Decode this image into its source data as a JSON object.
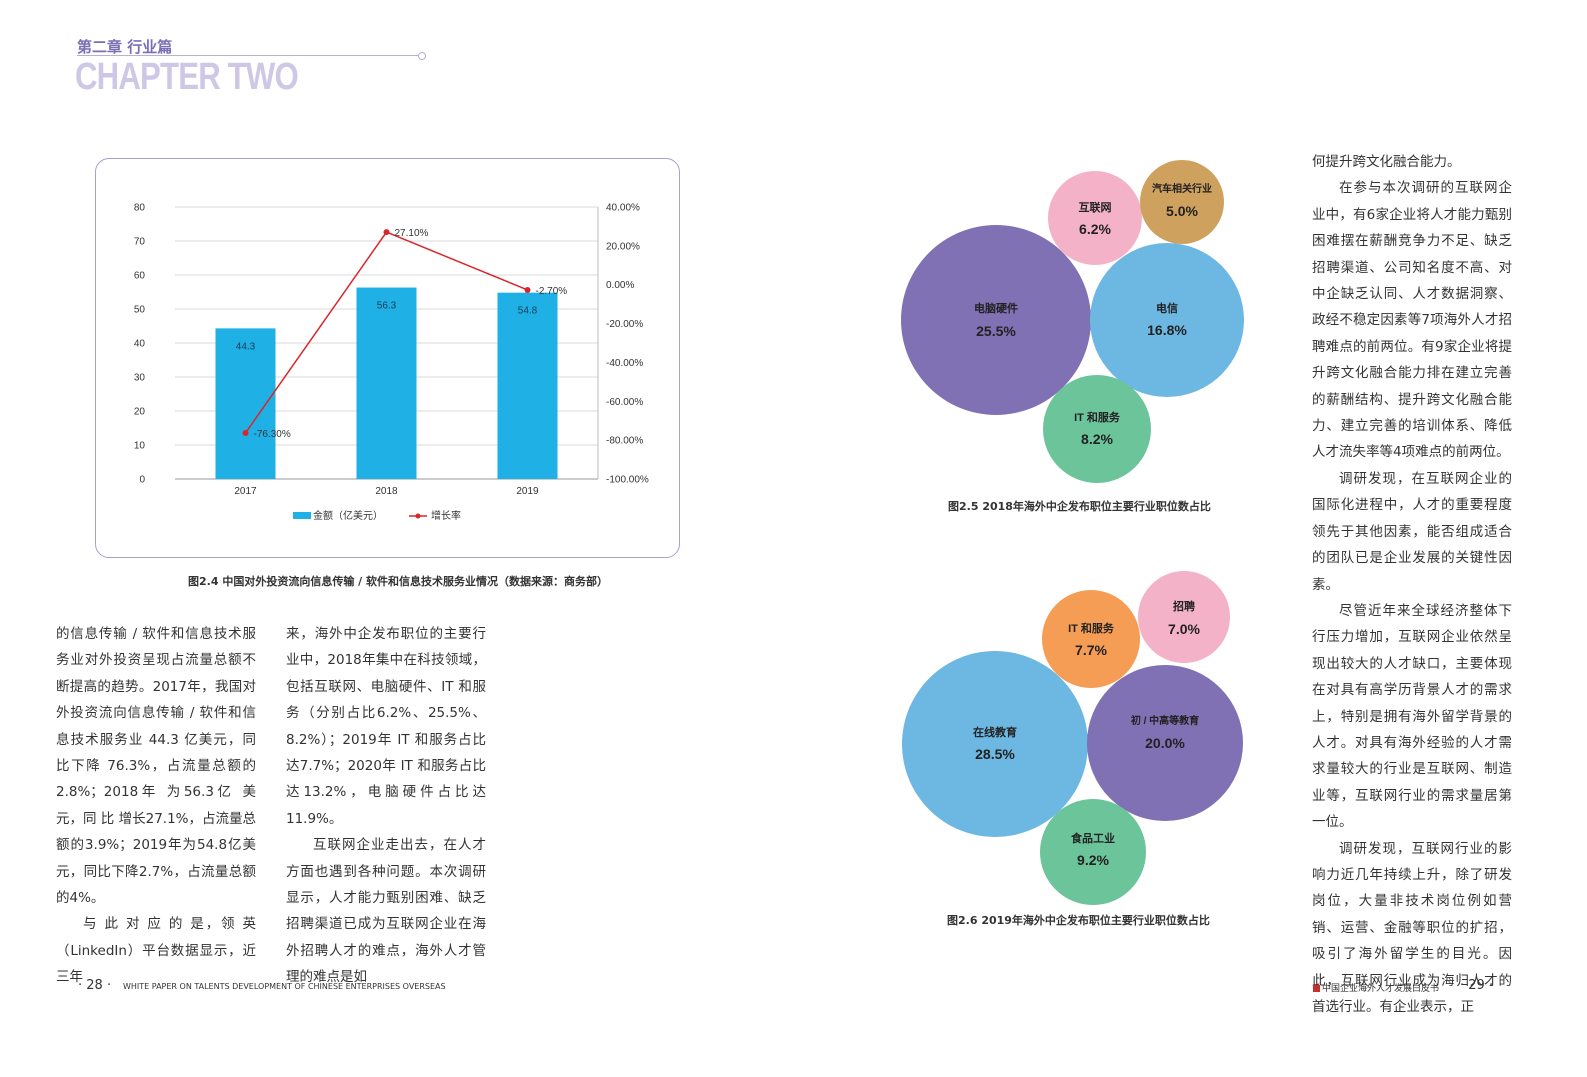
{
  "header": {
    "chapter_cn": "第二章 行业篇",
    "chapter_en": "CHAPTER TWO"
  },
  "figure_2_4": {
    "caption": "图2.4  中国对外投资流向信息传输 / 软件和信息技术服务业情况（数据来源：商务部）",
    "chart_data": {
      "type": "bar",
      "categories": [
        "2017",
        "2018",
        "2019"
      ],
      "series": [
        {
          "name": "金额（亿美元）",
          "type": "bar",
          "axis": "left",
          "values": [
            44.3,
            56.3,
            54.8
          ],
          "labels": [
            "44.3",
            "56.3",
            "54.8"
          ],
          "color": "#1fb0e6"
        },
        {
          "name": "增长率",
          "type": "line",
          "axis": "right",
          "values": [
            -76.3,
            27.1,
            -2.7
          ],
          "labels": [
            "-76.30%",
            "27.10%",
            "-2.70%"
          ],
          "color": "#d9262b"
        }
      ],
      "left_ticks": [
        "80",
        "70",
        "60",
        "50",
        "40",
        "30",
        "20",
        "10",
        "0"
      ],
      "right_ticks": [
        "40.00%",
        "20.00%",
        "0.00%",
        "-20.00%",
        "-40.00%",
        "-60.00%",
        "-80.00%",
        "-100.00%"
      ],
      "ylim_left": [
        0,
        80
      ],
      "ylim_right": [
        -100,
        40
      ],
      "grid": true,
      "legend": "bottom"
    }
  },
  "figure_2_5": {
    "caption": "图2.5  2018年海外中企发布职位主要行业职位数占比",
    "bubbles": [
      {
        "label": "电脑硬件",
        "value": "25.5%",
        "color": "#8070b4"
      },
      {
        "label": "电信",
        "value": "16.8%",
        "color": "#6cb8e2"
      },
      {
        "label": "IT 和服务",
        "value": "8.2%",
        "color": "#6cc49b"
      },
      {
        "label": "互联网",
        "value": "6.2%",
        "color": "#f4b2c9"
      },
      {
        "label": "汽车相关行业",
        "value": "5.0%",
        "color": "#cfa15f"
      }
    ]
  },
  "figure_2_6": {
    "caption": "图2.6  2019年海外中企发布职位主要行业职位数占比",
    "bubbles": [
      {
        "label": "在线教育",
        "value": "28.5%",
        "color": "#6cb8e2"
      },
      {
        "label": "初 / 中高等教育",
        "value": "20.0%",
        "color": "#8070b4"
      },
      {
        "label": "食品工业",
        "value": "9.2%",
        "color": "#6cc49b"
      },
      {
        "label": "IT 和服务",
        "value": "7.7%",
        "color": "#f59d54"
      },
      {
        "label": "招聘",
        "value": "7.0%",
        "color": "#f4b2c9"
      }
    ]
  },
  "columns": {
    "col1": [
      "的信息传输 / 软件和信息技术服务业对外投资呈现占流量总额不断提高的趋势。2017年，我国对外投资流向信息传输 / 软件和信息技术服务业 44.3 亿美元，同比下降 76.3%，占流量总额的 2.8%；2018年 为56.3亿 美 元，同 比 增长27.1%，占流量总额的3.9%；2019年为54.8亿美元，同比下降2.7%，占流量总额的4%。",
      "与 此 对 应 的 是，领 英（LinkedIn）平台数据显示，近三年"
    ],
    "col2": [
      "来，海外中企发布职位的主要行业中，2018年集中在科技领域，包括互联网、电脑硬件、IT 和服务（分别占比6.2%、25.5%、8.2%）；2019年 IT 和服务占比达7.7%；2020年 IT 和服务占比达13.2%，电脑硬件占比达11.9%。",
      "互联网企业走出去，在人才方面也遇到各种问题。本次调研显示，人才能力甄别困难、缺乏招聘渠道已成为互联网企业在海外招聘人才的难点，海外人才管理的难点是如"
    ],
    "col3": [
      "何提升跨文化融合能力。",
      "在参与本次调研的互联网企业中，有6家企业将人才能力甄别困难摆在薪酬竞争力不足、缺乏招聘渠道、公司知名度不高、对中企缺乏认同、人才数据洞察、政经不稳定因素等7项海外人才招聘难点的前两位。有9家企业将提升跨文化融合能力排在建立完善的薪酬结构、提升跨文化融合能力、建立完善的培训体系、降低人才流失率等4项难点的前两位。",
      "调研发现，在互联网企业的国际化进程中，人才的重要程度领先于其他因素，能否组成适合的团队已是企业发展的关键性因素。",
      "尽管近年来全球经济整体下行压力增加，互联网企业依然呈现出较大的人才缺口，主要体现在对具有高学历背景人才的需求上，特别是拥有海外留学背景的人才。对具有海外经验的人才需求量较大的行业是互联网、制造业等，互联网行业的需求量居第一位。",
      "调研发现，互联网行业的影响力近几年持续上升，除了研发岗位，大量非技术岗位例如营销、运营、金融等职位的扩招，吸引了海外留学生的目光。因此，互联网行业成为海归人才的首选行业。有企业表示，正"
    ]
  },
  "footer": {
    "left_page": "· 28 ·",
    "left_title": "WHITE PAPER ON TALENTS  DEVELOPMENT OF CHINESE ENTERPRISES OVERSEAS",
    "right_title": "中国企业海外人才发展白皮书",
    "right_page": "· 29 ·"
  }
}
